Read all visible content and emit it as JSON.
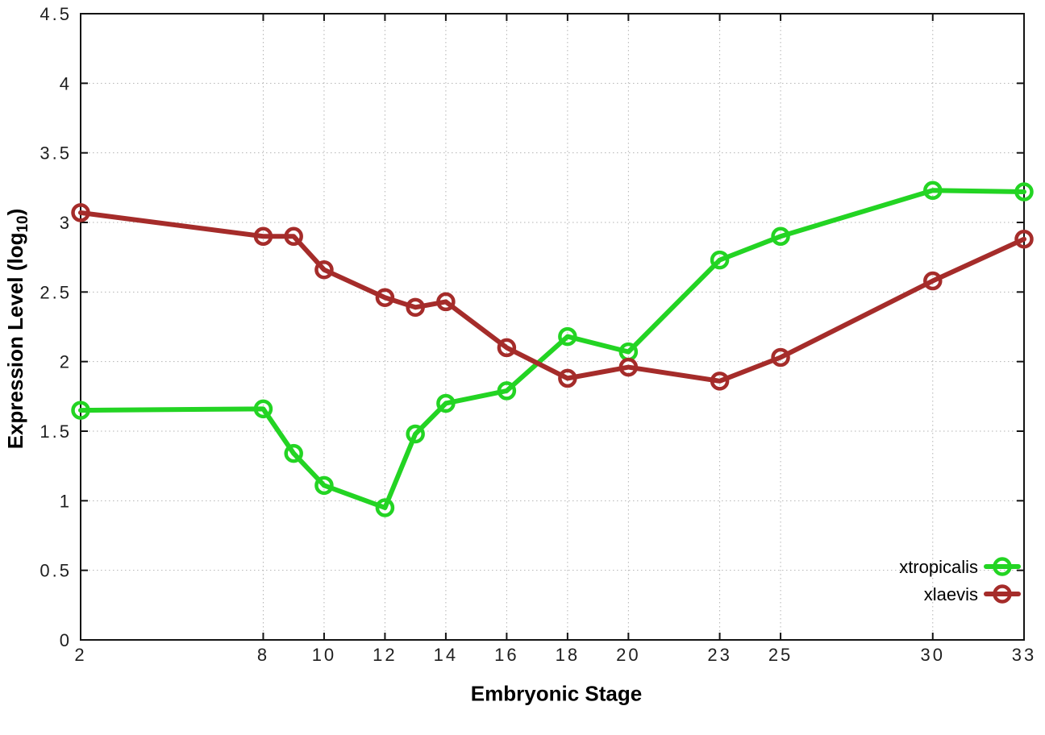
{
  "figure": {
    "xlabel": "Embryonic Stage",
    "ylabel_prefix": "Expression Level (log",
    "ylabel_sub": "10",
    "ylabel_suffix": ")"
  },
  "chart_data": {
    "type": "line",
    "title": "",
    "xlabel": "Embryonic Stage",
    "ylabel": "Expression Level (log10)",
    "x": [
      2,
      8,
      9,
      10,
      12,
      13,
      14,
      16,
      18,
      20,
      23,
      25,
      30,
      33
    ],
    "series": [
      {
        "name": "xtropicalis",
        "color": "#23d423",
        "values": [
          1.65,
          1.66,
          1.34,
          1.11,
          0.95,
          1.48,
          1.7,
          1.79,
          2.18,
          2.07,
          2.73,
          2.9,
          3.23,
          3.22
        ]
      },
      {
        "name": "xlaevis",
        "color": "#a52c2a",
        "values": [
          3.07,
          2.9,
          2.9,
          2.66,
          2.46,
          2.39,
          2.43,
          2.1,
          1.88,
          1.96,
          1.86,
          2.03,
          2.58,
          2.88
        ]
      }
    ],
    "xlim": [
      2,
      33
    ],
    "ylim": [
      0,
      4.5
    ],
    "x_ticks": [
      2,
      8,
      10,
      12,
      14,
      16,
      18,
      20,
      23,
      25,
      30,
      33
    ],
    "y_ticks": [
      0,
      0.5,
      1,
      1.5,
      2,
      2.5,
      3,
      3.5,
      4,
      4.5
    ],
    "grid": true,
    "marker": "open-circle",
    "legend_position": "bottom-right"
  },
  "style": {
    "background": "#ffffff",
    "border_color": "#141414",
    "grid_color": "#b3b3b3",
    "tick_label_color": "#1f1f1f",
    "legend_text_color": "#000000"
  }
}
